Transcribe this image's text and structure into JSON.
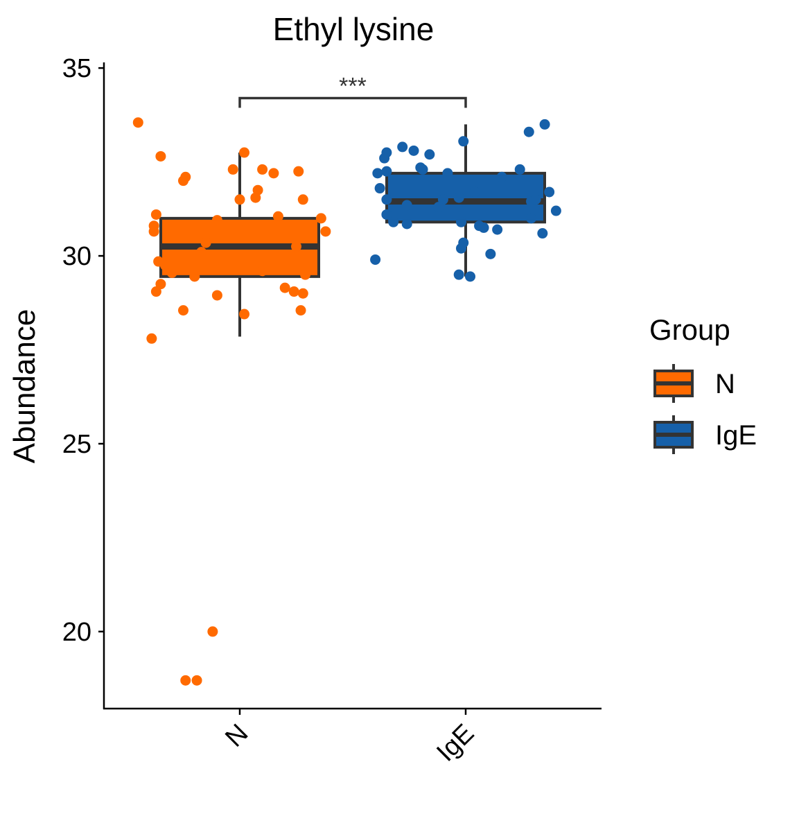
{
  "chart_data": {
    "type": "box",
    "title": "Ethyl lysine",
    "xlabel": "",
    "ylabel": "Abundance",
    "ylim": [
      17.95,
      35.15
    ],
    "yticks": [
      20,
      25,
      30,
      35
    ],
    "categories": [
      "N",
      "IgE"
    ],
    "legend": {
      "title": "Group",
      "position": "right",
      "entries": [
        "N",
        "IgE"
      ]
    },
    "colors": {
      "N": "#FF6A00",
      "IgE": "#1660A9",
      "box_edge": "#333333"
    },
    "grid": false,
    "significance": {
      "from": "N",
      "to": "IgE",
      "label": "***",
      "y": 34.2
    },
    "series": [
      {
        "name": "N",
        "box": {
          "whisker_low": 27.85,
          "q1": 29.45,
          "median": 30.25,
          "q3": 31.0,
          "whisker_high": 32.75
        },
        "points": [
          [
            -0.45,
            33.55
          ],
          [
            -0.35,
            32.65
          ],
          [
            -0.24,
            32.1
          ],
          [
            -0.25,
            32.0
          ],
          [
            0.02,
            32.75
          ],
          [
            -0.03,
            32.3
          ],
          [
            0.1,
            32.3
          ],
          [
            0.15,
            32.2
          ],
          [
            0.26,
            32.25
          ],
          [
            0.08,
            31.75
          ],
          [
            0.07,
            31.55
          ],
          [
            0.0,
            31.5
          ],
          [
            0.28,
            31.5
          ],
          [
            -0.37,
            31.1
          ],
          [
            -0.1,
            30.95
          ],
          [
            0.17,
            31.05
          ],
          [
            0.36,
            31.0
          ],
          [
            -0.38,
            30.8
          ],
          [
            -0.38,
            30.65
          ],
          [
            0.38,
            30.65
          ],
          [
            -0.15,
            30.35
          ],
          [
            0.25,
            30.25
          ],
          [
            -0.17,
            30.1
          ],
          [
            -0.36,
            29.85
          ],
          [
            -0.33,
            29.75
          ],
          [
            -0.3,
            29.55
          ],
          [
            -0.2,
            29.45
          ],
          [
            0.1,
            29.6
          ],
          [
            0.29,
            29.5
          ],
          [
            -0.35,
            29.25
          ],
          [
            0.2,
            29.15
          ],
          [
            0.24,
            29.05
          ],
          [
            0.28,
            29.0
          ],
          [
            -0.37,
            29.05
          ],
          [
            -0.1,
            28.95
          ],
          [
            -0.25,
            28.55
          ],
          [
            0.27,
            28.55
          ],
          [
            0.02,
            28.45
          ],
          [
            -0.39,
            27.8
          ],
          [
            -0.12,
            20.0
          ],
          [
            -0.24,
            18.7
          ],
          [
            -0.19,
            18.7
          ]
        ]
      },
      {
        "name": "IgE",
        "box": {
          "whisker_low": 29.45,
          "q1": 30.9,
          "median": 31.45,
          "q3": 32.2,
          "whisker_high": 33.5
        },
        "points": [
          [
            0.35,
            33.5
          ],
          [
            0.28,
            33.3
          ],
          [
            -0.01,
            33.05
          ],
          [
            -0.28,
            32.9
          ],
          [
            -0.35,
            32.75
          ],
          [
            -0.23,
            32.8
          ],
          [
            -0.16,
            32.7
          ],
          [
            -0.36,
            32.6
          ],
          [
            -0.19,
            32.3
          ],
          [
            -0.2,
            32.35
          ],
          [
            -0.35,
            32.25
          ],
          [
            -0.39,
            32.2
          ],
          [
            0.24,
            32.3
          ],
          [
            -0.08,
            32.2
          ],
          [
            0.16,
            32.1
          ],
          [
            0.04,
            31.7
          ],
          [
            -0.38,
            31.8
          ],
          [
            0.37,
            31.7
          ],
          [
            -0.35,
            31.5
          ],
          [
            -0.1,
            31.5
          ],
          [
            -0.03,
            31.55
          ],
          [
            0.29,
            31.45
          ],
          [
            0.31,
            31.5
          ],
          [
            -0.26,
            31.35
          ],
          [
            -0.12,
            31.3
          ],
          [
            0.4,
            31.2
          ],
          [
            -0.35,
            31.1
          ],
          [
            0.29,
            31.0
          ],
          [
            -0.32,
            30.9
          ],
          [
            -0.26,
            30.85
          ],
          [
            -0.02,
            30.9
          ],
          [
            0.06,
            30.8
          ],
          [
            0.08,
            30.75
          ],
          [
            0.14,
            30.7
          ],
          [
            0.34,
            30.6
          ],
          [
            -0.01,
            30.35
          ],
          [
            -0.02,
            30.2
          ],
          [
            0.11,
            30.05
          ],
          [
            -0.4,
            29.9
          ],
          [
            -0.03,
            29.5
          ],
          [
            0.02,
            29.45
          ]
        ]
      }
    ]
  }
}
